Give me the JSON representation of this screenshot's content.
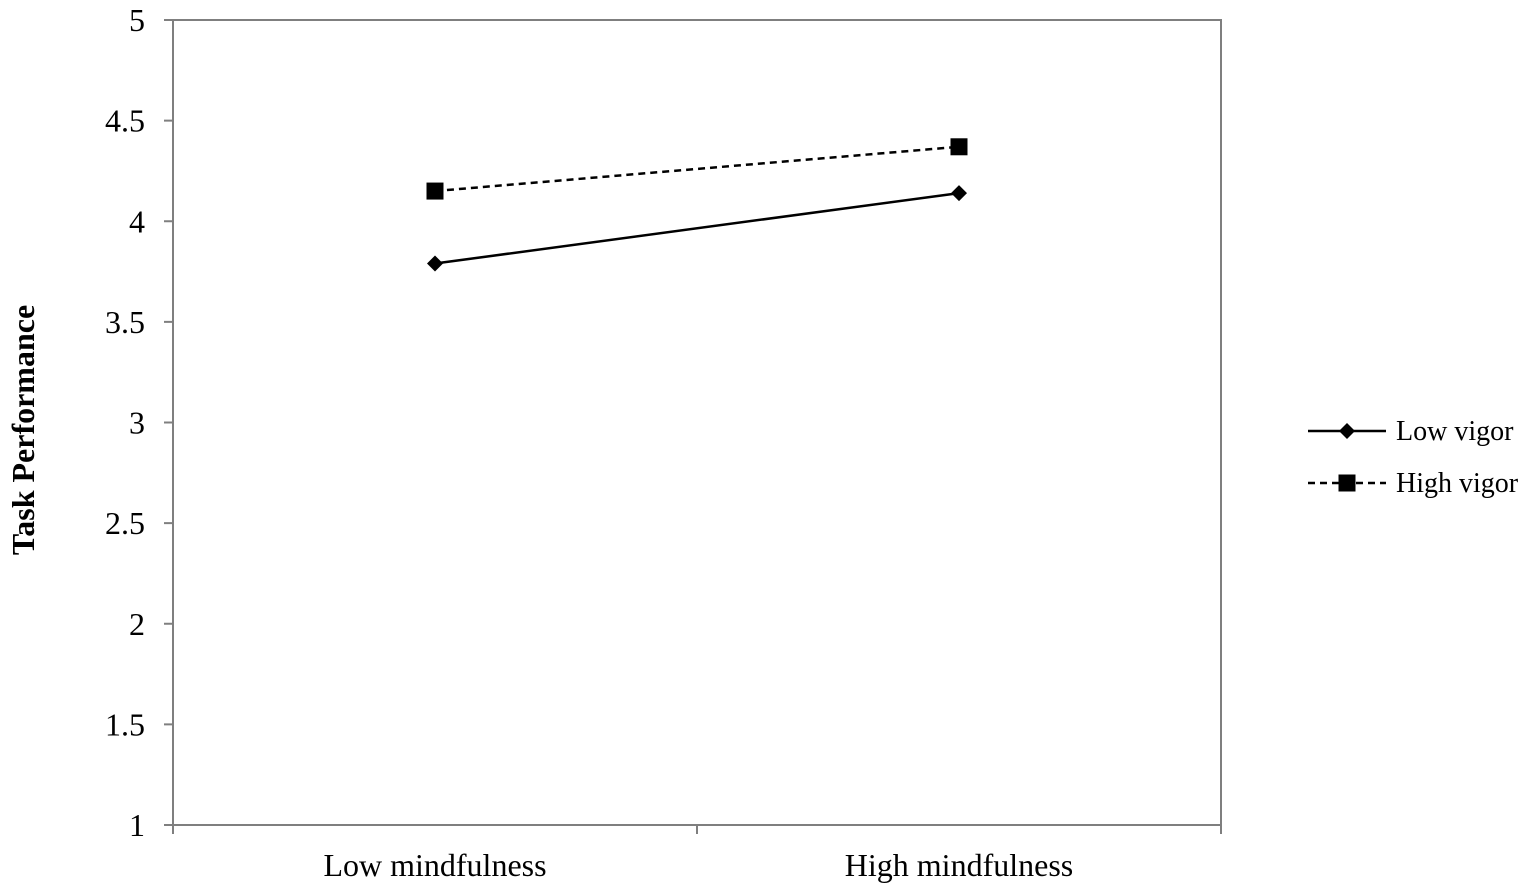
{
  "chart_data": {
    "type": "line",
    "title": "",
    "xlabel": "",
    "ylabel": "Task Performance",
    "categories": [
      "Low mindfulness",
      "High mindfulness"
    ],
    "ylim": [
      1,
      5
    ],
    "yticks": [
      "1",
      "1.5",
      "2",
      "2.5",
      "3",
      "3.5",
      "4",
      "4.5",
      "5"
    ],
    "grid": false,
    "legend_position": "right",
    "series": [
      {
        "name": "Low vigor",
        "values": [
          3.79,
          4.14
        ],
        "line_style": "solid",
        "marker": "diamond",
        "color": "#000000"
      },
      {
        "name": "High vigor",
        "values": [
          4.15,
          4.37
        ],
        "line_style": "dashed",
        "marker": "square",
        "color": "#000000"
      }
    ]
  }
}
